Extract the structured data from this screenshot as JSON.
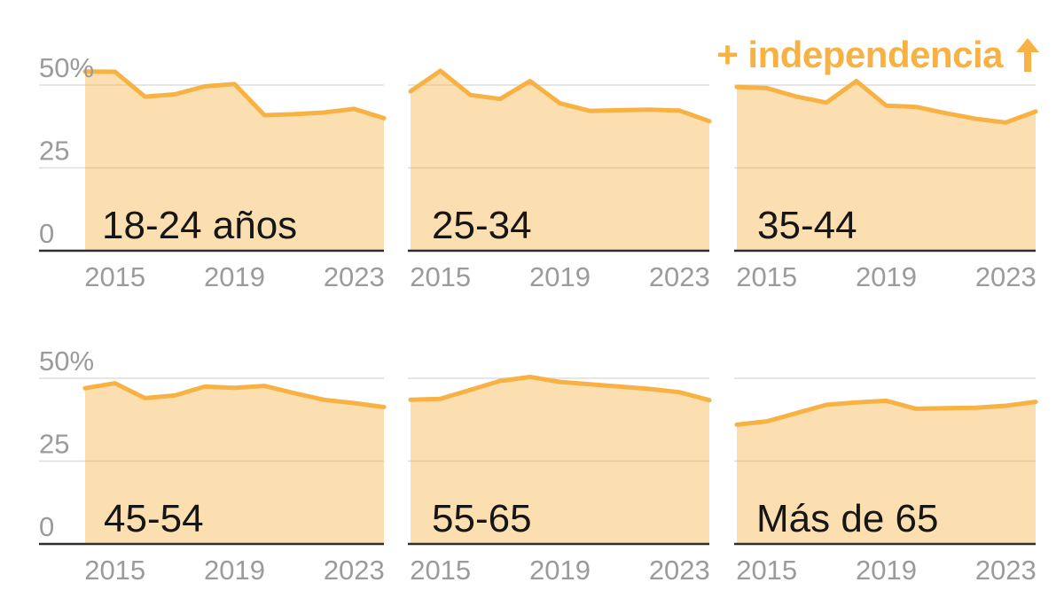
{
  "title": {
    "text": "+ independencia",
    "icon": "up-arrow"
  },
  "colors": {
    "accent": "#F7B243",
    "area_fill_result": "#FBE2B0",
    "gridline": "#DDDDDD",
    "axis": "#2E2E2E",
    "tick_label": "#9B9B9B",
    "panel_label": "#161616",
    "background": "#FFFFFF"
  },
  "chart_data": {
    "type": "area",
    "layout_hint": "small-multiples 2 rows x 3 cols, shared axes, y labels only on first column, grid on, annotation top-right",
    "unit": "%",
    "x": [
      2014,
      2015,
      2016,
      2017,
      2018,
      2019,
      2020,
      2021,
      2022,
      2023,
      2024
    ],
    "xticks": [
      "2015",
      "2019",
      "2023"
    ],
    "yticks": [
      {
        "value": 0,
        "label": "0"
      },
      {
        "value": 25,
        "label": "25"
      },
      {
        "value": 50,
        "label": "50%"
      }
    ],
    "ylim": [
      0,
      57
    ],
    "series": [
      {
        "name": "18-24 años",
        "values": [
          54.1,
          54.0,
          46.5,
          47.2,
          49.6,
          50.3,
          40.9,
          41.2,
          41.7,
          42.8,
          40.0
        ]
      },
      {
        "name": "25-34",
        "values": [
          48.1,
          54.3,
          47.0,
          45.8,
          51.2,
          44.5,
          42.2,
          42.4,
          42.6,
          42.3,
          39.1
        ]
      },
      {
        "name": "35-44",
        "values": [
          49.4,
          49.1,
          46.5,
          44.7,
          51.2,
          43.8,
          43.4,
          41.5,
          39.8,
          38.7,
          42.0
        ]
      },
      {
        "name": "45-54",
        "values": [
          47.0,
          48.5,
          44.0,
          44.8,
          47.5,
          47.1,
          47.7,
          45.5,
          43.5,
          42.5,
          41.3
        ]
      },
      {
        "name": "55-65",
        "values": [
          43.5,
          43.8,
          46.5,
          49.2,
          50.4,
          48.9,
          48.2,
          47.5,
          46.8,
          45.8,
          43.4
        ]
      },
      {
        "name": "Más de 65",
        "values": [
          36.0,
          37.0,
          39.5,
          42.0,
          42.7,
          43.2,
          40.8,
          41.0,
          41.1,
          41.7,
          42.9
        ]
      }
    ]
  }
}
